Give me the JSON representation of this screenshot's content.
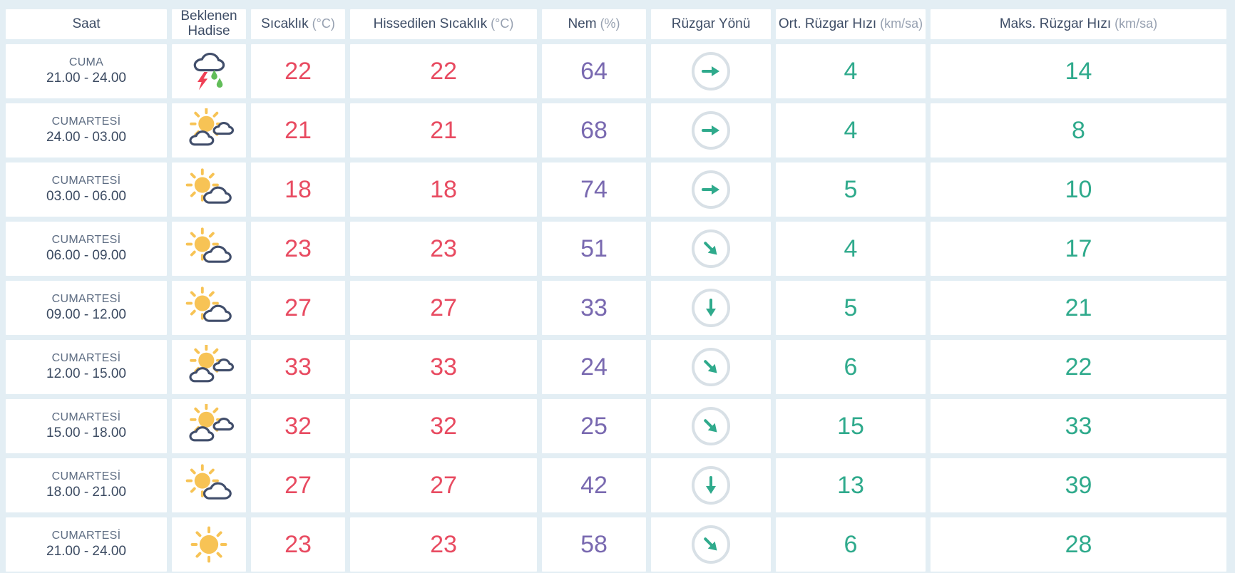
{
  "table": {
    "columns": [
      {
        "label": "Saat",
        "unit": ""
      },
      {
        "label": "Beklenen Hadise",
        "unit": ""
      },
      {
        "label": "Sıcaklık",
        "unit": "(°C)"
      },
      {
        "label": "Hissedilen Sıcaklık",
        "unit": "(°C)"
      },
      {
        "label": "Nem",
        "unit": "(%)"
      },
      {
        "label": "Rüzgar Yönü",
        "unit": ""
      },
      {
        "label": "Ort. Rüzgar Hızı",
        "unit": "(km/sa)"
      },
      {
        "label": "Maks. Rüzgar Hızı",
        "unit": "(km/sa)"
      }
    ],
    "rows": [
      {
        "day": "CUMA",
        "time": "21.00 - 24.00",
        "icon": "thunderstorm",
        "wind_dir": "E",
        "wind_deg": 0,
        "temp": "22",
        "feels": "22",
        "humidity": "64",
        "avg_wind": "4",
        "max_wind": "14"
      },
      {
        "day": "CUMARTESİ",
        "time": "24.00 - 03.00",
        "icon": "sun-two-clouds",
        "wind_dir": "E",
        "wind_deg": 0,
        "temp": "21",
        "feels": "21",
        "humidity": "68",
        "avg_wind": "4",
        "max_wind": "8"
      },
      {
        "day": "CUMARTESİ",
        "time": "03.00 - 06.00",
        "icon": "sun-with-cloud",
        "wind_dir": "E",
        "wind_deg": 0,
        "temp": "18",
        "feels": "18",
        "humidity": "74",
        "avg_wind": "5",
        "max_wind": "10"
      },
      {
        "day": "CUMARTESİ",
        "time": "06.00 - 09.00",
        "icon": "sun-with-cloud",
        "wind_dir": "SE",
        "wind_deg": 45,
        "temp": "23",
        "feels": "23",
        "humidity": "51",
        "avg_wind": "4",
        "max_wind": "17"
      },
      {
        "day": "CUMARTESİ",
        "time": "09.00 - 12.00",
        "icon": "sun-with-cloud",
        "wind_dir": "S",
        "wind_deg": 90,
        "temp": "27",
        "feels": "27",
        "humidity": "33",
        "avg_wind": "5",
        "max_wind": "21"
      },
      {
        "day": "CUMARTESİ",
        "time": "12.00 - 15.00",
        "icon": "sun-two-clouds",
        "wind_dir": "SE",
        "wind_deg": 45,
        "temp": "33",
        "feels": "33",
        "humidity": "24",
        "avg_wind": "6",
        "max_wind": "22"
      },
      {
        "day": "CUMARTESİ",
        "time": "15.00 - 18.00",
        "icon": "sun-two-clouds",
        "wind_dir": "SE",
        "wind_deg": 45,
        "temp": "32",
        "feels": "32",
        "humidity": "25",
        "avg_wind": "15",
        "max_wind": "33"
      },
      {
        "day": "CUMARTESİ",
        "time": "18.00 - 21.00",
        "icon": "sun-with-cloud",
        "wind_dir": "S",
        "wind_deg": 90,
        "temp": "27",
        "feels": "27",
        "humidity": "42",
        "avg_wind": "13",
        "max_wind": "39"
      },
      {
        "day": "CUMARTESİ",
        "time": "21.00 - 24.00",
        "icon": "sunny",
        "wind_dir": "SE",
        "wind_deg": 45,
        "temp": "23",
        "feels": "23",
        "humidity": "58",
        "avg_wind": "6",
        "max_wind": "28"
      }
    ]
  },
  "colors": {
    "background": "#e3eef4",
    "cell": "#ffffff",
    "header_text": "#3e4d66",
    "header_unit": "#97a1b1",
    "day_text": "#5d6c82",
    "time_text": "#3c4b62",
    "temperature": "#e84b61",
    "humidity": "#7969b0",
    "wind_speed": "#2faa8c",
    "wind_circle_border": "#d8e0e6",
    "sun": "#f7c355",
    "cloud_stroke": "#414e6b",
    "lightning": "#ef4055",
    "raindrop": "#62bd59"
  }
}
